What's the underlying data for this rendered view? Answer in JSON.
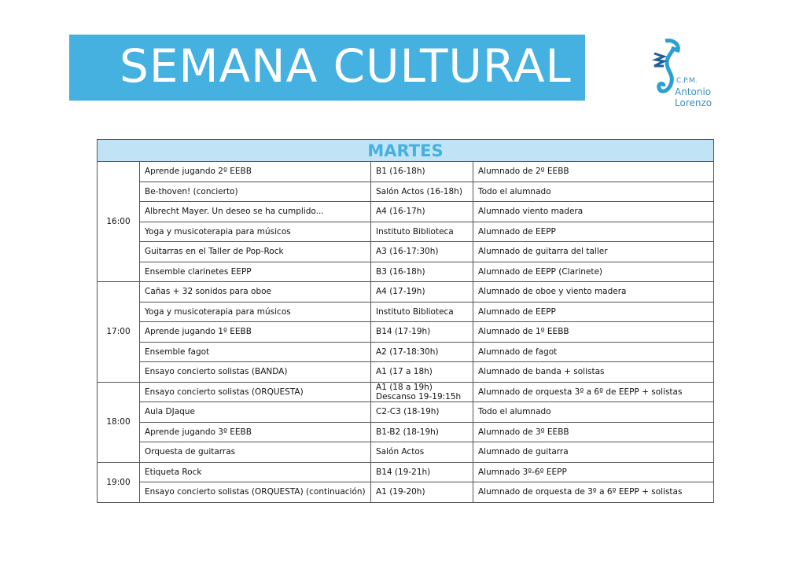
{
  "title": "SEMANA CULTURAL",
  "logo": {
    "line1": "C.P.M.",
    "line2": "Antonio Lorenzo"
  },
  "day": "MARTES",
  "colors": {
    "banner": "#45b1e1",
    "header_bg": "#c0e4f5"
  },
  "groups": [
    {
      "time": "16:00",
      "rows": [
        [
          "Aprende jugando 2º EEBB",
          "B1 (16-18h)",
          "Alumnado de 2º EEBB"
        ],
        [
          "Be-thoven! (concierto)",
          "Salón Actos (16-18h)",
          "Todo el alumnado"
        ],
        [
          "Albrecht Mayer. Un deseo se ha cumplido...",
          "A4 (16-17h)",
          "Alumnado viento madera"
        ],
        [
          "Yoga y musicoterapia para músicos",
          "Instituto Biblioteca",
          "Alumnado de EEPP"
        ],
        [
          "Guitarras en el Taller de Pop-Rock",
          "A3 (16-17:30h)",
          "Alumnado de guitarra del taller"
        ],
        [
          "Ensemble clarinetes EEPP",
          "B3 (16-18h)",
          "Alumnado de EEPP (Clarinete)"
        ]
      ]
    },
    {
      "time": "17:00",
      "rows": [
        [
          "Cañas + 32 sonidos para oboe",
          "A4 (17-19h)",
          "Alumnado de oboe y viento madera"
        ],
        [
          "Yoga y musicoterapia para músicos",
          "Instituto Biblioteca",
          "Alumnado de EEPP"
        ],
        [
          "Aprende jugando 1º EEBB",
          "B14 (17-19h)",
          "Alumnado de 1º EEBB"
        ],
        [
          "Ensemble fagot",
          "A2 (17-18:30h)",
          "Alumnado de fagot"
        ],
        [
          "Ensayo concierto solistas (BANDA)",
          "A1 (17 a 18h)",
          "Alumnado de banda + solistas"
        ]
      ]
    },
    {
      "time": "18:00",
      "rows": [
        [
          "Ensayo concierto solistas (ORQUESTA)",
          "A1 (18 a 19h)\nDescanso 19-19:15h",
          "Alumnado de orquesta 3º a 6º de EEPP + solistas"
        ],
        [
          "Aula DJaque",
          "C2-C3 (18-19h)",
          "Todo el alumnado"
        ],
        [
          "Aprende jugando 3º EEBB",
          "B1-B2 (18-19h)",
          "Alumnado de 3º EEBB"
        ],
        [
          "Orquesta de guitarras",
          "Salón Actos",
          "Alumnado de guitarra"
        ]
      ]
    },
    {
      "time": "19:00",
      "rows": [
        [
          "Etiqueta Rock",
          "B14 (19-21h)",
          "Alumnado 3º-6º EEPP"
        ],
        [
          "Ensayo concierto solistas (ORQUESTA) (continuación)",
          "A1 (19-20h)",
          "Alumnado de orquesta de 3º a 6º EEPP + solistas"
        ]
      ]
    }
  ]
}
